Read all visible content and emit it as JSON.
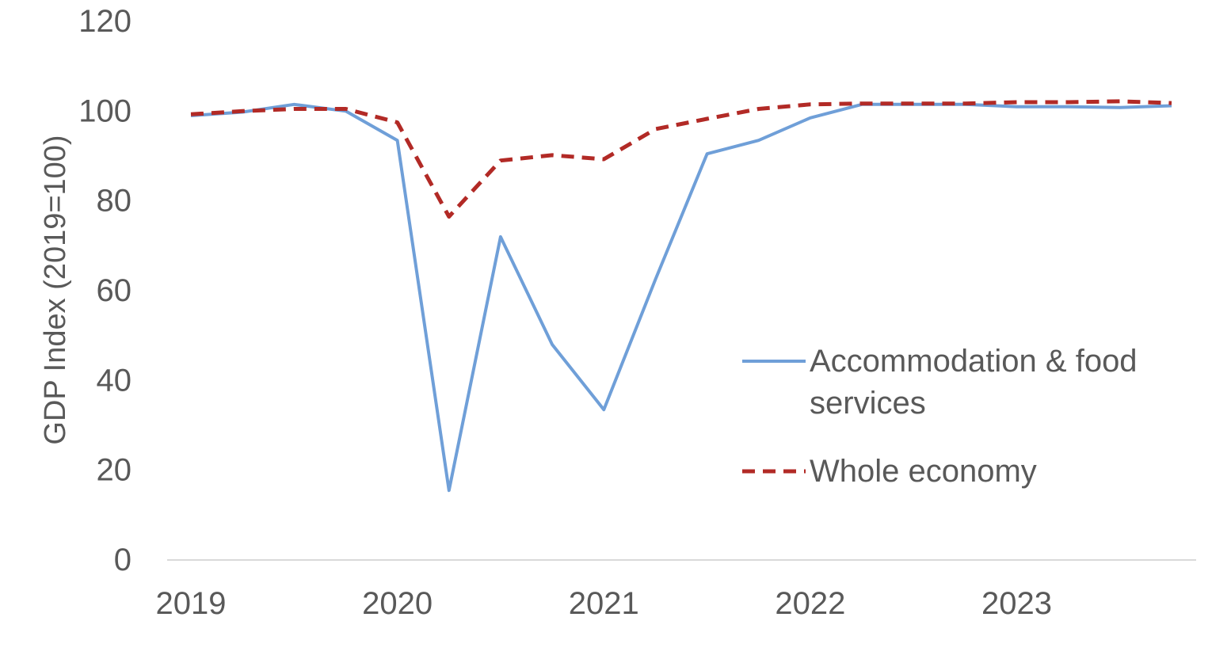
{
  "chart_data": {
    "type": "line",
    "title": "",
    "xlabel": "",
    "ylabel": "GDP Index (2019=100)",
    "ylim": [
      0,
      120
    ],
    "yticks": [
      0,
      20,
      40,
      60,
      80,
      100,
      120
    ],
    "xlim": [
      2019.0,
      2023.75
    ],
    "xticks": [
      {
        "label": "2019",
        "value": 2019.0
      },
      {
        "label": "2020",
        "value": 2020.0
      },
      {
        "label": "2021",
        "value": 2021.0
      },
      {
        "label": "2022",
        "value": 2022.0
      },
      {
        "label": "2023",
        "value": 2023.0
      }
    ],
    "x": [
      2019.0,
      2019.25,
      2019.5,
      2019.75,
      2020.0,
      2020.25,
      2020.5,
      2020.75,
      2021.0,
      2021.25,
      2021.5,
      2021.75,
      2022.0,
      2022.25,
      2022.5,
      2022.75,
      2023.0,
      2023.25,
      2023.5,
      2023.75
    ],
    "grid": false,
    "legend_position": "right",
    "series": [
      {
        "name": "Accommodation & food services",
        "style": "solid",
        "color": "#6f9fd8",
        "values": [
          99,
          99.8,
          101.5,
          100,
          93.5,
          15.5,
          72,
          48,
          33.5,
          62.5,
          90.5,
          93.5,
          98.5,
          101.5,
          101.5,
          101.5,
          101,
          101,
          100.8,
          101.2
        ]
      },
      {
        "name": "Whole economy",
        "style": "dashed",
        "color": "#b22a26",
        "values": [
          99.3,
          100,
          100.5,
          100.5,
          97.5,
          76.5,
          89,
          90.2,
          89.3,
          96,
          98.3,
          100.5,
          101.5,
          101.7,
          101.7,
          101.7,
          102,
          102,
          102.2,
          101.8
        ]
      }
    ]
  }
}
